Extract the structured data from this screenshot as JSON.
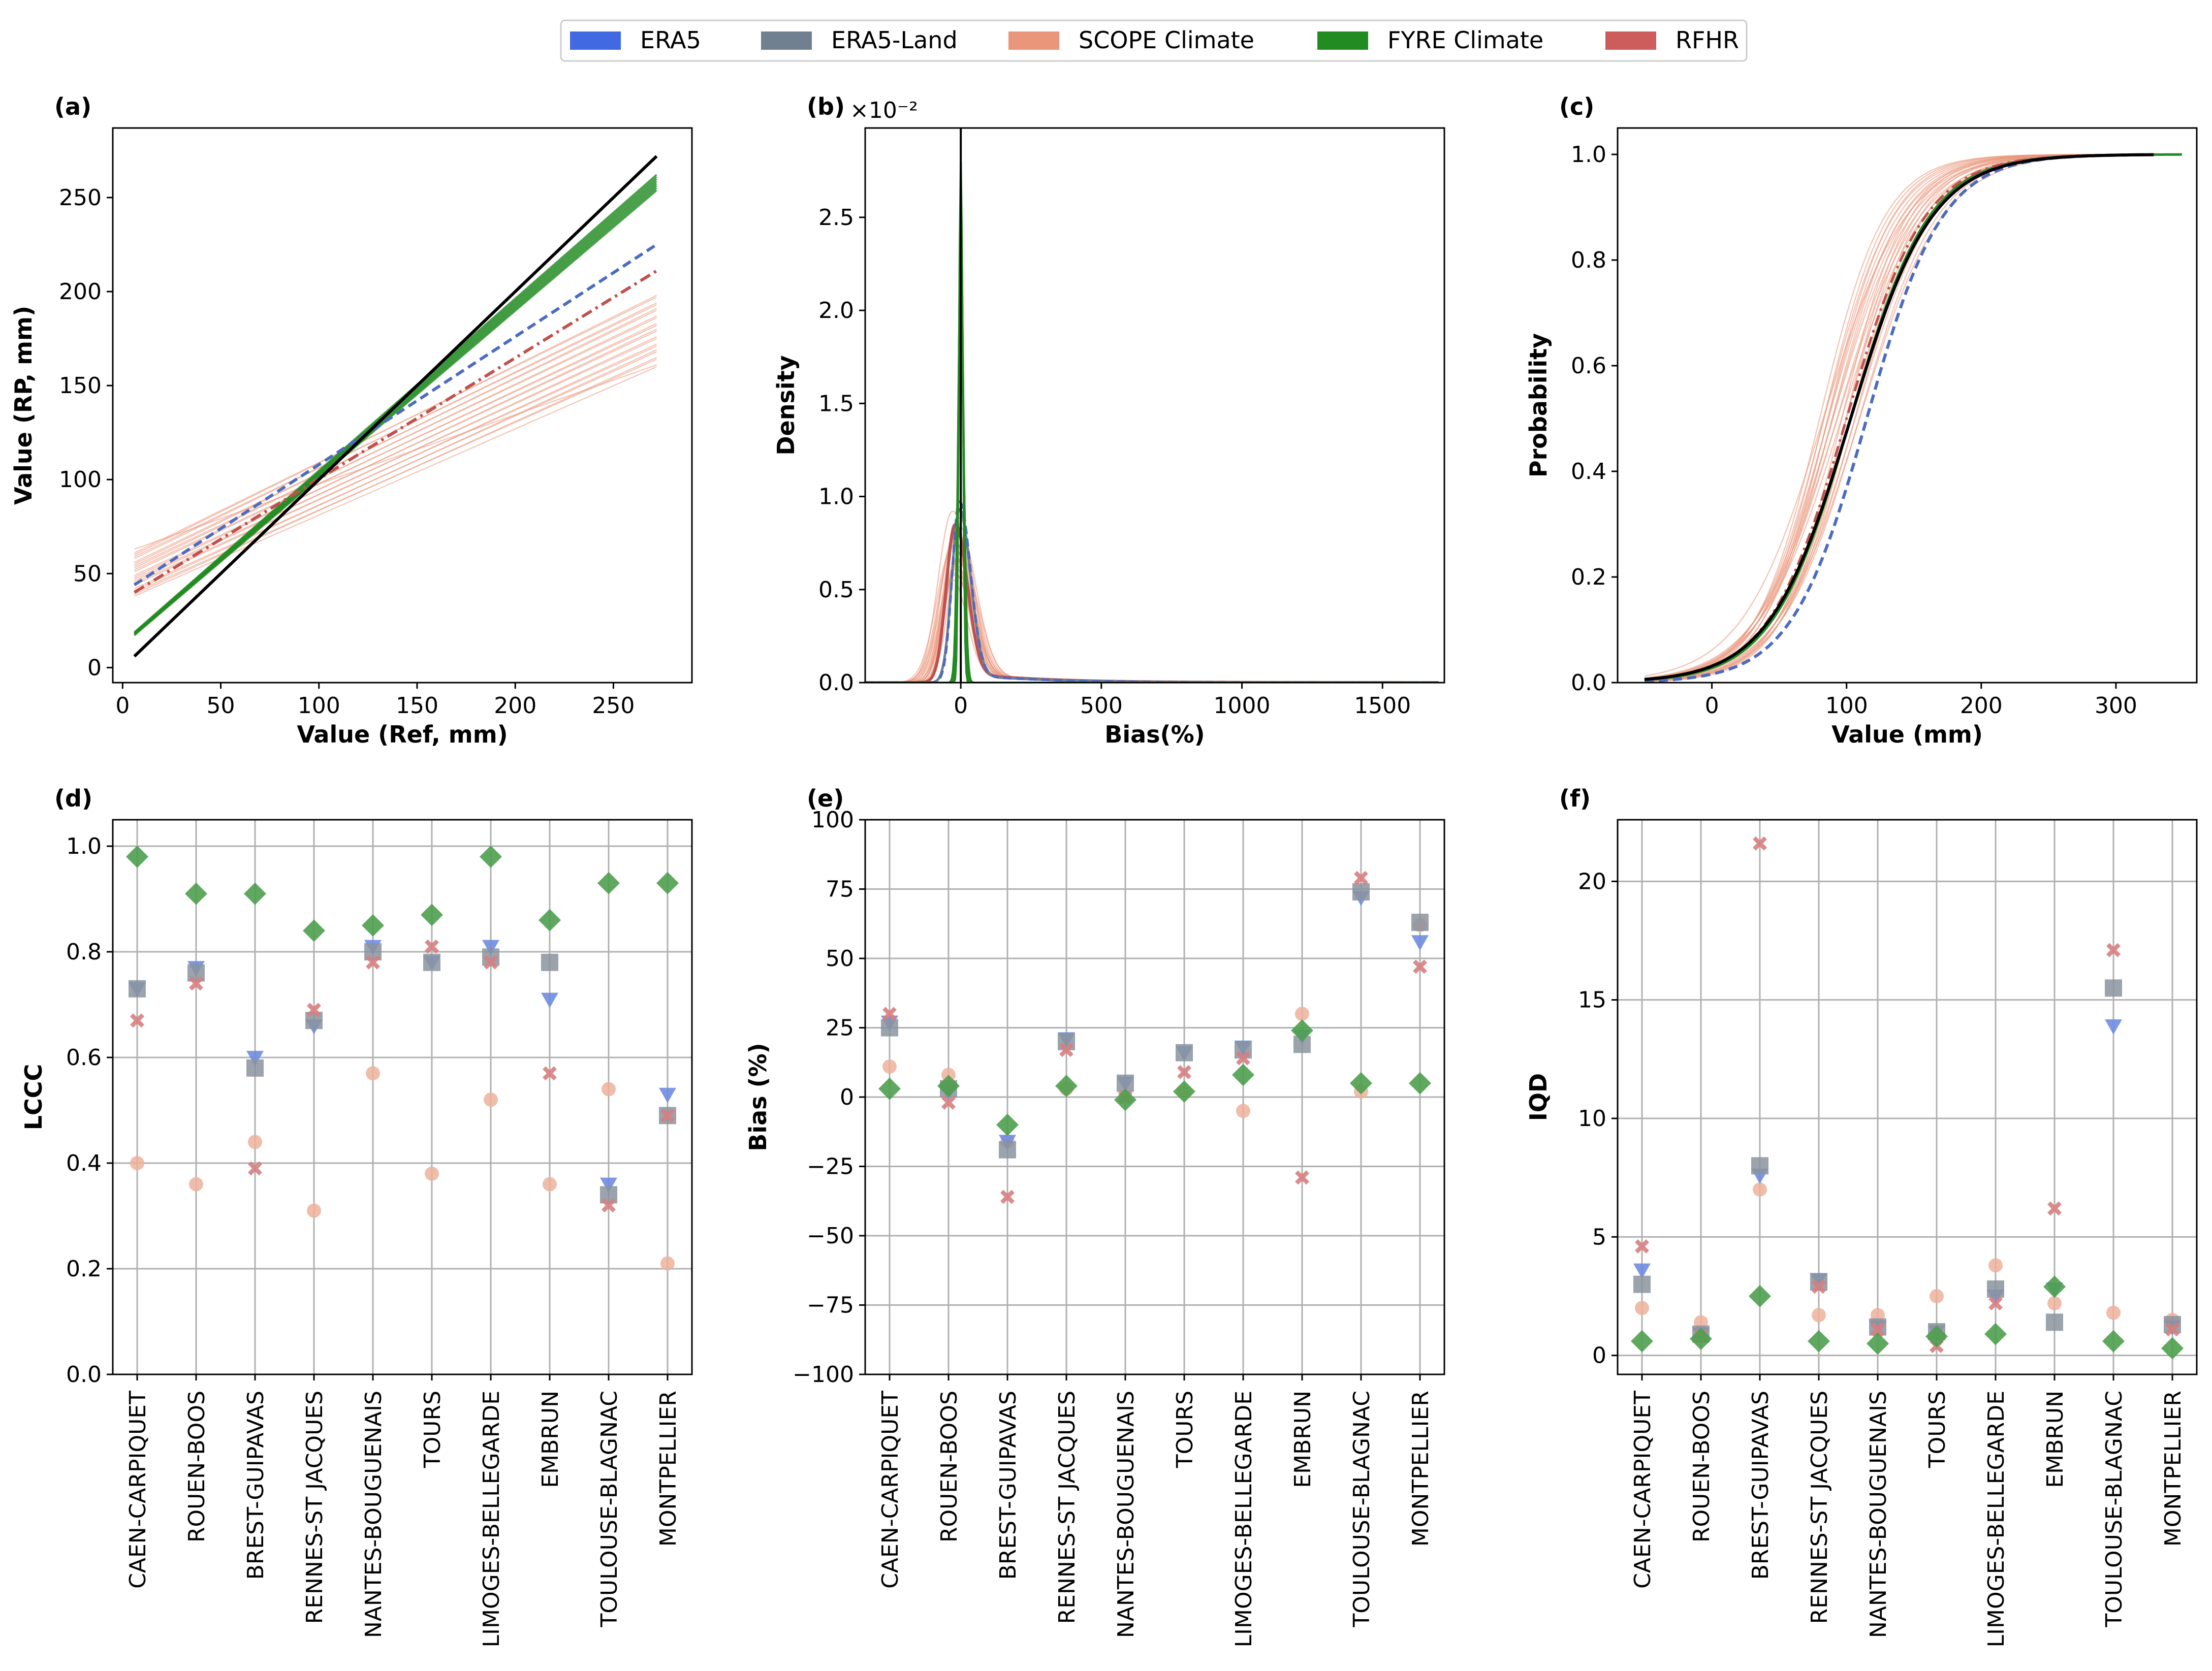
{
  "legend": {
    "items": [
      {
        "label": "ERA5",
        "color": "#4169E1"
      },
      {
        "label": "ERA5-Land",
        "color": "#708090"
      },
      {
        "label": "SCOPE Climate",
        "color": "#E9967A"
      },
      {
        "label": "FYRE Climate",
        "color": "#228B22"
      },
      {
        "label": "RFHR",
        "color": "#CD5C5C"
      }
    ]
  },
  "chart_data": [
    {
      "id": "a",
      "letter": "(a)",
      "type": "line",
      "xlabel": "Value (Ref, mm)",
      "ylabel": "Value (RP, mm)",
      "xlim": [
        -5,
        290
      ],
      "ylim": [
        -8,
        287
      ],
      "xticks": [
        0,
        50,
        100,
        150,
        200,
        250
      ],
      "yticks": [
        0,
        50,
        100,
        150,
        200,
        250
      ],
      "series": [
        {
          "name": "Reference",
          "color": "#000000",
          "style": "solid",
          "x": [
            6,
            272
          ],
          "y": [
            6,
            272
          ]
        },
        {
          "name": "ERA5",
          "color": "#4169E1",
          "style": "dashed",
          "x": [
            6,
            272
          ],
          "y": [
            44,
            225
          ]
        },
        {
          "name": "RFHR",
          "color": "#CD5C5C",
          "style": "dashdot",
          "x": [
            6,
            272
          ],
          "y": [
            40,
            211
          ]
        },
        {
          "name": "FYRE Climate",
          "color": "#228B22",
          "style": "solid",
          "x": [
            6,
            272
          ],
          "y": [
            18,
            258
          ]
        },
        {
          "name": "SCOPE Climate",
          "color": "#E9967A",
          "style": "thin",
          "x": [
            6,
            272
          ],
          "y": [
            50,
            178
          ]
        }
      ]
    },
    {
      "id": "b",
      "letter": "(b)",
      "type": "line",
      "xlabel": "Bias(%)",
      "ylabel": "Density",
      "multiplier": "×10⁻²",
      "xlim": [
        -340,
        1720
      ],
      "ylim": [
        0,
        2.98
      ],
      "xticks": [
        0,
        500,
        1000,
        1500
      ],
      "yticks": [
        0.0,
        0.5,
        1.0,
        1.5,
        2.0,
        2.5
      ],
      "series": [
        {
          "name": "Reference",
          "color": "#000000",
          "peak_x": 0,
          "peak_y": 2.98
        },
        {
          "name": "FYRE Climate",
          "color": "#228B22",
          "peak_x": 0,
          "peak_y": 2.8
        },
        {
          "name": "ERA5",
          "color": "#4169E1",
          "peak_x": -5,
          "peak_y": 0.97
        },
        {
          "name": "ERA5-Land",
          "color": "#708090",
          "peak_x": -5,
          "peak_y": 0.93
        },
        {
          "name": "RFHR",
          "color": "#CD5C5C",
          "peak_x": -20,
          "peak_y": 0.85
        },
        {
          "name": "SCOPE Climate",
          "color": "#E9967A",
          "peak_x": -30,
          "peak_y": 0.9
        }
      ]
    },
    {
      "id": "c",
      "letter": "(c)",
      "type": "line",
      "xlabel": "Value (mm)",
      "ylabel": "Probability",
      "xlim": [
        -70,
        360
      ],
      "ylim": [
        0,
        1.05
      ],
      "xticks": [
        0,
        100,
        200,
        300
      ],
      "yticks": [
        0.0,
        0.2,
        0.4,
        0.6,
        0.8,
        1.0
      ],
      "series": [
        {
          "name": "Reference",
          "color": "#000000",
          "median": 103,
          "scale": 30
        },
        {
          "name": "ERA5",
          "color": "#4169E1",
          "median": 115,
          "scale": 28
        },
        {
          "name": "FYRE Climate",
          "color": "#228B22",
          "median": 103,
          "scale": 29
        },
        {
          "name": "RFHR",
          "color": "#CD5C5C",
          "median": 100,
          "scale": 29
        },
        {
          "name": "SCOPE Climate",
          "color": "#E9967A",
          "median": 92,
          "scale": 27
        }
      ]
    },
    {
      "id": "d",
      "letter": "(d)",
      "type": "scatter",
      "ylabel": "LCCC",
      "ylim": [
        0,
        1.05
      ],
      "yticks": [
        0.0,
        0.2,
        0.4,
        0.6,
        0.8,
        1.0
      ],
      "categories": [
        "CAEN-CARPIQUET",
        "ROUEN-BOOS",
        "BREST-GUIPAVAS",
        "RENNES-ST JACQUES",
        "NANTES-BOUGUENAIS",
        "TOURS",
        "LIMOGES-BELLEGARDE",
        "EMBRUN",
        "TOULOUSE-BLAGNAC",
        "MONTPELLIER"
      ],
      "series": [
        {
          "name": "ERA5",
          "marker": "triangle",
          "values": [
            0.73,
            0.77,
            0.6,
            0.66,
            0.81,
            0.78,
            0.81,
            0.71,
            0.36,
            0.53
          ]
        },
        {
          "name": "ERA5-Land",
          "marker": "square",
          "values": [
            0.73,
            0.76,
            0.58,
            0.67,
            0.8,
            0.78,
            0.79,
            0.78,
            0.34,
            0.49
          ]
        },
        {
          "name": "SCOPE Climate",
          "marker": "circle",
          "values": [
            0.4,
            0.36,
            0.44,
            0.31,
            0.57,
            0.38,
            0.52,
            0.36,
            0.54,
            0.21
          ]
        },
        {
          "name": "FYRE Climate",
          "marker": "diamond",
          "values": [
            0.98,
            0.91,
            0.91,
            0.84,
            0.85,
            0.87,
            0.98,
            0.86,
            0.93,
            0.93
          ]
        },
        {
          "name": "RFHR",
          "marker": "x",
          "values": [
            0.67,
            0.74,
            0.39,
            0.69,
            0.78,
            0.81,
            0.78,
            0.57,
            0.32,
            0.49
          ]
        }
      ]
    },
    {
      "id": "e",
      "letter": "(e)",
      "type": "scatter",
      "ylabel": "Bias (%)",
      "ylim": [
        -100,
        100
      ],
      "yticks": [
        -100,
        -75,
        -50,
        -25,
        0,
        25,
        50,
        75,
        100
      ],
      "categories": [
        "CAEN-CARPIQUET",
        "ROUEN-BOOS",
        "BREST-GUIPAVAS",
        "RENNES-ST JACQUES",
        "NANTES-BOUGUENAIS",
        "TOURS",
        "LIMOGES-BELLEGARDE",
        "EMBRUN",
        "TOULOUSE-BLAGNAC",
        "MONTPELLIER"
      ],
      "series": [
        {
          "name": "ERA5",
          "marker": "triangle",
          "values": [
            27,
            2,
            -16,
            21,
            5,
            16,
            18,
            22,
            72,
            56
          ]
        },
        {
          "name": "ERA5-Land",
          "marker": "square",
          "values": [
            25,
            3,
            -19,
            20,
            5,
            16,
            17,
            19,
            74,
            63
          ]
        },
        {
          "name": "SCOPE Climate",
          "marker": "circle",
          "values": [
            11,
            8,
            -16,
            3,
            0,
            2,
            -5,
            30,
            2,
            62
          ]
        },
        {
          "name": "FYRE Climate",
          "marker": "diamond",
          "values": [
            3,
            4,
            -10,
            4,
            -1,
            2,
            8,
            24,
            5,
            5
          ]
        },
        {
          "name": "RFHR",
          "marker": "x",
          "values": [
            30,
            -2,
            -36,
            17,
            0,
            9,
            14,
            -29,
            79,
            47
          ]
        }
      ]
    },
    {
      "id": "f",
      "letter": "(f)",
      "type": "scatter",
      "ylabel": "IQD",
      "ylim": [
        -0.8,
        22.6
      ],
      "yticks": [
        0,
        5,
        10,
        15,
        20
      ],
      "categories": [
        "CAEN-CARPIQUET",
        "ROUEN-BOOS",
        "BREST-GUIPAVAS",
        "RENNES-ST JACQUES",
        "NANTES-BOUGUENAIS",
        "TOURS",
        "LIMOGES-BELLEGARDE",
        "EMBRUN",
        "TOULOUSE-BLAGNAC",
        "MONTPELLIER"
      ],
      "series": [
        {
          "name": "ERA5",
          "marker": "triangle",
          "values": [
            3.6,
            0.9,
            7.6,
            3.2,
            1.2,
            1.0,
            2.5,
            2.8,
            13.9,
            1.2
          ]
        },
        {
          "name": "ERA5-Land",
          "marker": "square",
          "values": [
            3.0,
            0.9,
            8.0,
            3.1,
            1.2,
            1.0,
            2.8,
            1.4,
            15.5,
            1.3
          ]
        },
        {
          "name": "SCOPE Climate",
          "marker": "circle",
          "values": [
            2.0,
            1.4,
            7.0,
            1.7,
            1.7,
            2.5,
            3.8,
            2.2,
            1.8,
            1.5
          ]
        },
        {
          "name": "FYRE Climate",
          "marker": "diamond",
          "values": [
            0.6,
            0.7,
            2.5,
            0.6,
            0.5,
            0.8,
            0.9,
            2.9,
            0.6,
            0.3
          ]
        },
        {
          "name": "RFHR",
          "marker": "x",
          "values": [
            4.6,
            0.8,
            21.6,
            2.9,
            1.1,
            0.4,
            2.2,
            6.2,
            17.1,
            1.1
          ]
        }
      ]
    }
  ]
}
